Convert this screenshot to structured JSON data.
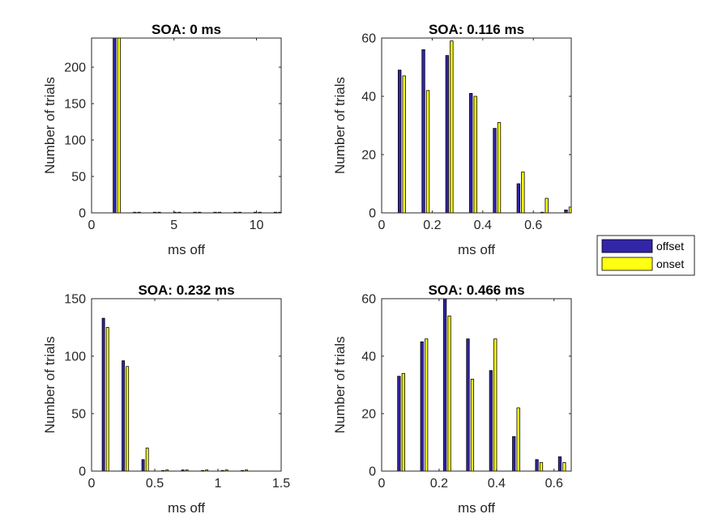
{
  "colors": {
    "offset": "#3325a8",
    "onset": "#ffff11",
    "axis": "#262626",
    "bar_edge": "#000000"
  },
  "legend": {
    "placement": "right",
    "entries": [
      "offset",
      "onset"
    ]
  },
  "chart_data": [
    {
      "type": "bar",
      "title": "SOA: 0 ms",
      "xlabel": "ms off",
      "ylabel": "Number of trials",
      "xlim": [
        0,
        11.5
      ],
      "ylim": [
        0,
        240
      ],
      "xticks": [
        0,
        5,
        10
      ],
      "xtick_labels": [
        "0",
        "5",
        "10"
      ],
      "yticks": [
        0,
        50,
        100,
        150,
        200
      ],
      "ytick_labels": [
        "0",
        "50",
        "100",
        "150",
        "200"
      ],
      "x": [
        1.53,
        2.75,
        3.97,
        5.19,
        6.41,
        7.63,
        8.85,
        10.07,
        11.29
      ],
      "series": [
        {
          "name": "offset",
          "values": [
            240,
            0,
            0,
            0,
            0,
            0,
            0,
            0,
            0
          ]
        },
        {
          "name": "onset",
          "values": [
            240,
            0,
            0,
            0,
            0,
            0,
            0,
            0,
            0
          ]
        }
      ],
      "grid": false
    },
    {
      "type": "bar",
      "title": "SOA: 0.116 ms",
      "xlabel": "ms off",
      "ylabel": "Number of trials",
      "xlim": [
        0,
        0.75
      ],
      "ylim": [
        0,
        60
      ],
      "xticks": [
        0,
        0.2,
        0.4,
        0.6
      ],
      "xtick_labels": [
        "0",
        "0.2",
        "0.4",
        "0.6"
      ],
      "yticks": [
        0,
        20,
        40,
        60
      ],
      "ytick_labels": [
        "0",
        "20",
        "40",
        "60"
      ],
      "x": [
        0.08,
        0.174,
        0.268,
        0.362,
        0.456,
        0.55,
        0.644,
        0.738
      ],
      "series": [
        {
          "name": "offset",
          "values": [
            49,
            56,
            54,
            41,
            29,
            10,
            0,
            1
          ]
        },
        {
          "name": "onset",
          "values": [
            47,
            42,
            59,
            40,
            31,
            14,
            5,
            2
          ]
        }
      ],
      "grid": false
    },
    {
      "type": "bar",
      "title": "SOA: 0.232 ms",
      "xlabel": "ms off",
      "ylabel": "Number of trials",
      "xlim": [
        0,
        1.5
      ],
      "ylim": [
        0,
        150
      ],
      "xticks": [
        0,
        0.5,
        1,
        1.5
      ],
      "xtick_labels": [
        "0",
        "0.5",
        "1",
        "1.5"
      ],
      "yticks": [
        0,
        50,
        100,
        150
      ],
      "ytick_labels": [
        "0",
        "50",
        "100",
        "150"
      ],
      "x": [
        0.11,
        0.267,
        0.424,
        0.581,
        0.738,
        0.895,
        1.052,
        1.209
      ],
      "series": [
        {
          "name": "offset",
          "values": [
            133,
            96,
            10,
            0,
            1,
            0,
            0,
            0
          ]
        },
        {
          "name": "onset",
          "values": [
            125,
            91,
            20,
            1,
            1,
            1,
            1,
            1
          ]
        }
      ],
      "grid": false
    },
    {
      "type": "bar",
      "title": "SOA: 0.466 ms",
      "xlabel": "ms off",
      "ylabel": "Number of trials",
      "xlim": [
        0,
        0.66
      ],
      "ylim": [
        0,
        60
      ],
      "xticks": [
        0,
        0.2,
        0.4,
        0.6
      ],
      "xtick_labels": [
        "0",
        "0.2",
        "0.4",
        "0.6"
      ],
      "yticks": [
        0,
        20,
        40,
        60
      ],
      "ytick_labels": [
        "0",
        "20",
        "40",
        "60"
      ],
      "x": [
        0.068,
        0.148,
        0.228,
        0.308,
        0.388,
        0.468,
        0.548,
        0.628
      ],
      "series": [
        {
          "name": "offset",
          "values": [
            33,
            45,
            60,
            46,
            35,
            12,
            4,
            5
          ]
        },
        {
          "name": "onset",
          "values": [
            34,
            46,
            54,
            32,
            46,
            22,
            3,
            3
          ]
        }
      ],
      "grid": false
    }
  ]
}
